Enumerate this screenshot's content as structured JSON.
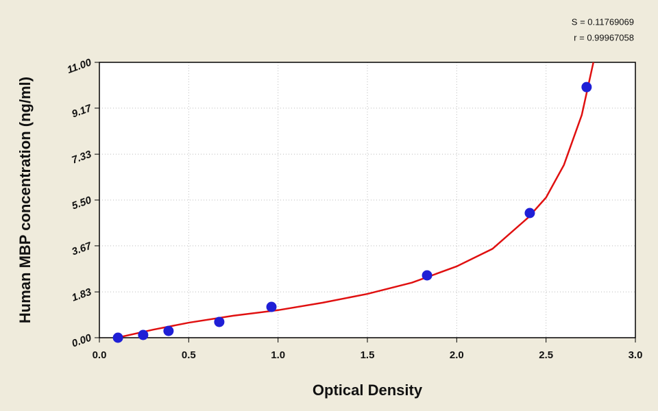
{
  "chart_data": {
    "type": "scatter",
    "x_label": "Optical Density",
    "y_label": "Human MBP concentration (ng/ml)",
    "annotations": [
      "S = 0.11769069",
      "r = 0.99967058"
    ],
    "points": {
      "color": "#1f1fd6",
      "x": [
        0.104,
        0.245,
        0.387,
        0.671,
        0.963,
        1.834,
        2.409,
        2.727
      ],
      "values": [
        0.0,
        0.11,
        0.27,
        0.63,
        1.23,
        2.49,
        4.98,
        10.01
      ]
    },
    "fit": {
      "color": "#e01010",
      "x": [
        0.1,
        0.3,
        0.5,
        0.75,
        1.0,
        1.25,
        1.5,
        1.75,
        2.0,
        2.2,
        2.4,
        2.5,
        2.6,
        2.7,
        2.765
      ],
      "values": [
        0.0,
        0.32,
        0.6,
        0.88,
        1.1,
        1.4,
        1.75,
        2.2,
        2.85,
        3.55,
        4.8,
        5.6,
        6.9,
        8.9,
        11.0
      ]
    },
    "xlim": [
      0,
      3
    ],
    "ylim": [
      0,
      11
    ],
    "xticks": [
      {
        "value": 0,
        "label": "0.0"
      },
      0.5,
      {
        "value": 1,
        "label": "1.0"
      },
      1.5,
      {
        "value": 2,
        "label": "2.0"
      },
      2.5,
      {
        "value": 3,
        "label": "3.0"
      }
    ],
    "yticks": [
      {
        "value": 0,
        "label": "0.00"
      },
      1.83,
      3.67,
      {
        "value": 5.5,
        "label": "5.50"
      },
      7.33,
      9.17,
      {
        "value": 11,
        "label": "11.00"
      }
    ],
    "grid": true
  }
}
